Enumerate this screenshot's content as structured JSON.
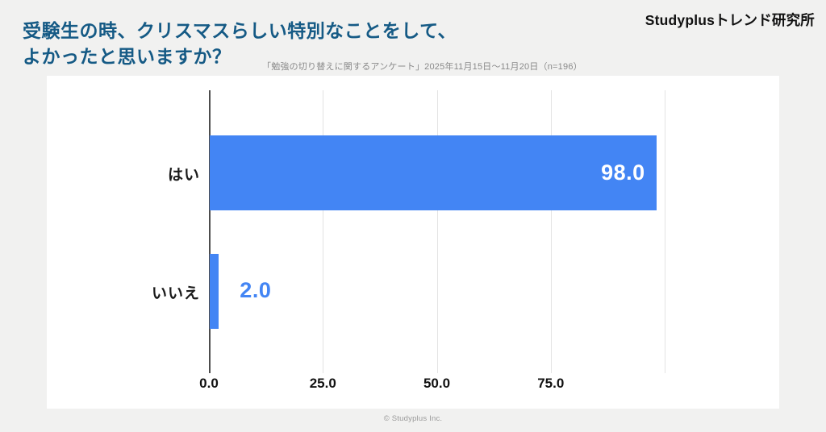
{
  "header": {
    "title_line1": "受験生の時、クリスマスらしい特別なことをして、",
    "title_line2": "よかったと思いますか？",
    "survey_note": "「勉強の切り替えに関するアンケート」2025年11月15日～11月20日（n=196）",
    "brand": "Studyplusトレンド研究所"
  },
  "footer": {
    "copyright": "© Studyplus Inc."
  },
  "colors": {
    "background": "#f1f1f0",
    "card": "#ffffff",
    "title": "#155a85",
    "brand": "#111111",
    "bar": "#4385f4",
    "axis": "#4d4d4d",
    "grid": "#e3e3e3",
    "tick_text": "#111111",
    "note_text": "#8a8a8a",
    "footer_text": "#9a9a9a",
    "value_inside": "#ffffff"
  },
  "chart_data": {
    "type": "bar",
    "orientation": "horizontal",
    "title": "受験生の時、クリスマスらしい特別なことをして、よかったと思いますか？",
    "categories": [
      "はい",
      "いいえ"
    ],
    "values": [
      98.0,
      2.0
    ],
    "value_labels": [
      "98.0",
      "2.0"
    ],
    "value_label_positions": [
      "inside",
      "outside"
    ],
    "xlim": [
      0,
      100
    ],
    "xticks": [
      0,
      25,
      50,
      75
    ],
    "xtick_labels": [
      "0.0",
      "25.0",
      "50.0",
      "75.0"
    ],
    "gridlines": [
      25,
      50,
      75,
      100
    ],
    "grid": true,
    "legend": false,
    "xlabel": "",
    "ylabel": ""
  }
}
